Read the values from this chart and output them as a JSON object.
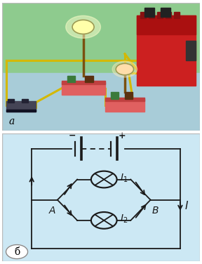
{
  "fig_width": 2.88,
  "fig_height": 3.76,
  "dpi": 100,
  "top_bg_green": "#8ecb8e",
  "top_bg_blue": "#a8ccd8",
  "bottom_bg": "#cce8f4",
  "label_a": "a",
  "label_b": "б",
  "minus_label": "−",
  "plus_label": "+",
  "I_label": "I",
  "I1_label": "I",
  "I1_sub": "1",
  "I2_label": "I",
  "I2_sub": "2",
  "A_label": "A",
  "B_label": "B",
  "line_color": "#1a1a1a",
  "line_width": 1.3
}
